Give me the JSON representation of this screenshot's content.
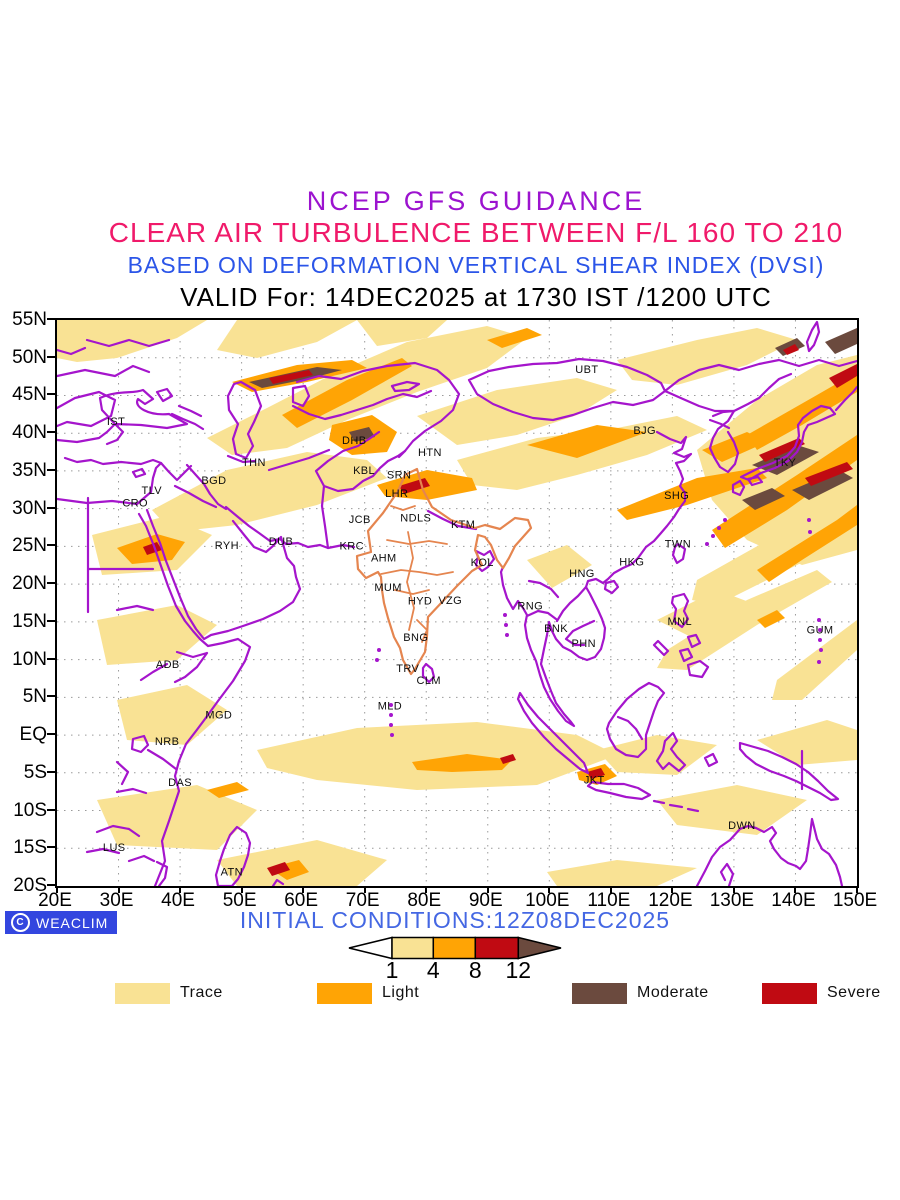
{
  "titles": {
    "line1": {
      "text": "NCEP GFS GUIDANCE",
      "color": "#9c13cf"
    },
    "line2": {
      "text": "CLEAR AIR TURBULENCE BETWEEN F/L 160 TO 210",
      "color": "#f01a6a"
    },
    "line3": {
      "text": "BASED ON DEFORMATION VERTICAL SHEAR INDEX (DVSI)",
      "color": "#2b55e8"
    },
    "line4": {
      "text": "VALID For: 14DEC2025 at 1730 IST /1200 UTC",
      "color": "#000000"
    }
  },
  "map": {
    "border_color": "#a515cc",
    "india_color": "#e5854f",
    "grid_color": "#9a9a9a",
    "severity_colors": {
      "trace": "#f9e294",
      "light": "#ffa405",
      "moderate": "#6b4a3e",
      "severe": "#c00a12"
    },
    "axes": {
      "lon_range": [
        20,
        150
      ],
      "lat_range": [
        -20,
        55
      ],
      "lat_ticks": [
        {
          "label": "55N",
          "value": 55
        },
        {
          "label": "50N",
          "value": 50
        },
        {
          "label": "45N",
          "value": 45
        },
        {
          "label": "40N",
          "value": 40
        },
        {
          "label": "35N",
          "value": 35
        },
        {
          "label": "30N",
          "value": 30
        },
        {
          "label": "25N",
          "value": 25
        },
        {
          "label": "20N",
          "value": 20
        },
        {
          "label": "15N",
          "value": 15
        },
        {
          "label": "10N",
          "value": 10
        },
        {
          "label": "5N",
          "value": 5
        },
        {
          "label": "EQ",
          "value": 0
        },
        {
          "label": "5S",
          "value": -5
        },
        {
          "label": "10S",
          "value": -10
        },
        {
          "label": "15S",
          "value": -15
        },
        {
          "label": "20S",
          "value": -20
        }
      ],
      "lon_ticks": [
        {
          "label": "20E",
          "value": 20
        },
        {
          "label": "30E",
          "value": 30
        },
        {
          "label": "40E",
          "value": 40
        },
        {
          "label": "50E",
          "value": 50
        },
        {
          "label": "60E",
          "value": 60
        },
        {
          "label": "70E",
          "value": 70
        },
        {
          "label": "80E",
          "value": 80
        },
        {
          "label": "90E",
          "value": 90
        },
        {
          "label": "100E",
          "value": 100
        },
        {
          "label": "110E",
          "value": 110
        },
        {
          "label": "120E",
          "value": 120
        },
        {
          "label": "130E",
          "value": 130
        },
        {
          "label": "140E",
          "value": 140
        },
        {
          "label": "150E",
          "value": 150
        }
      ]
    },
    "cities": [
      {
        "code": "IST",
        "lon": 29.6,
        "lat": 41.6
      },
      {
        "code": "TLV",
        "lon": 35.4,
        "lat": 32.5
      },
      {
        "code": "CRO",
        "lon": 32.7,
        "lat": 30.8
      },
      {
        "code": "BGD",
        "lon": 45.5,
        "lat": 33.8
      },
      {
        "code": "THN",
        "lon": 52.0,
        "lat": 36.2
      },
      {
        "code": "RYH",
        "lon": 47.6,
        "lat": 25.2
      },
      {
        "code": "DUB",
        "lon": 56.4,
        "lat": 25.7
      },
      {
        "code": "ADB",
        "lon": 38.0,
        "lat": 9.4
      },
      {
        "code": "MGD",
        "lon": 46.3,
        "lat": 2.7
      },
      {
        "code": "NRB",
        "lon": 37.9,
        "lat": -0.8
      },
      {
        "code": "DAS",
        "lon": 40.0,
        "lat": -6.2
      },
      {
        "code": "LUS",
        "lon": 29.3,
        "lat": -14.8
      },
      {
        "code": "ATN",
        "lon": 48.4,
        "lat": -18.1
      },
      {
        "code": "MLD",
        "lon": 74.1,
        "lat": 3.9
      },
      {
        "code": "DHB",
        "lon": 68.3,
        "lat": 39.1
      },
      {
        "code": "KBL",
        "lon": 69.9,
        "lat": 35.1
      },
      {
        "code": "SRN",
        "lon": 75.6,
        "lat": 34.5
      },
      {
        "code": "LHR",
        "lon": 75.2,
        "lat": 32.1
      },
      {
        "code": "HTN",
        "lon": 80.6,
        "lat": 37.5
      },
      {
        "code": "JCB",
        "lon": 69.2,
        "lat": 28.6
      },
      {
        "code": "NDLS",
        "lon": 78.3,
        "lat": 28.8
      },
      {
        "code": "KTM",
        "lon": 86.0,
        "lat": 28.0
      },
      {
        "code": "KRC",
        "lon": 67.9,
        "lat": 25.1
      },
      {
        "code": "AHM",
        "lon": 73.1,
        "lat": 23.5
      },
      {
        "code": "KOL",
        "lon": 89.1,
        "lat": 22.9
      },
      {
        "code": "MUM",
        "lon": 73.8,
        "lat": 19.6
      },
      {
        "code": "HYD",
        "lon": 79.0,
        "lat": 17.8
      },
      {
        "code": "VZG",
        "lon": 83.9,
        "lat": 17.9
      },
      {
        "code": "RNG",
        "lon": 96.9,
        "lat": 17.2
      },
      {
        "code": "BNG",
        "lon": 78.3,
        "lat": 13.0
      },
      {
        "code": "TRV",
        "lon": 77.0,
        "lat": 8.9
      },
      {
        "code": "CLM",
        "lon": 80.4,
        "lat": 7.3
      },
      {
        "code": "UBT",
        "lon": 106.1,
        "lat": 48.5
      },
      {
        "code": "BJG",
        "lon": 115.5,
        "lat": 40.4
      },
      {
        "code": "TKY",
        "lon": 138.3,
        "lat": 36.2
      },
      {
        "code": "SHG",
        "lon": 120.7,
        "lat": 31.8
      },
      {
        "code": "TWN",
        "lon": 120.9,
        "lat": 25.4
      },
      {
        "code": "HKG",
        "lon": 113.4,
        "lat": 23.0
      },
      {
        "code": "HNG",
        "lon": 105.3,
        "lat": 21.5
      },
      {
        "code": "BNK",
        "lon": 101.1,
        "lat": 14.2
      },
      {
        "code": "PHN",
        "lon": 105.6,
        "lat": 12.2
      },
      {
        "code": "MNL",
        "lon": 121.2,
        "lat": 15.1
      },
      {
        "code": "GUM",
        "lon": 144.0,
        "lat": 14.0
      },
      {
        "code": "JKT",
        "lon": 107.3,
        "lat": -5.9
      },
      {
        "code": "DWN",
        "lon": 131.3,
        "lat": -11.9
      }
    ]
  },
  "footer": {
    "logo": {
      "text": "WEACLIM",
      "bg": "#3346df"
    },
    "initial_conditions": {
      "text": "INITIAL CONDITIONS:12Z08DEC2025",
      "color": "#4467e3"
    },
    "colorbar": {
      "values": [
        "1",
        "4",
        "8",
        "12"
      ]
    },
    "legend": [
      {
        "label": "Trace",
        "sev": "trace"
      },
      {
        "label": "Light",
        "sev": "light"
      },
      {
        "label": "Moderate",
        "sev": "moderate"
      },
      {
        "label": "Severe",
        "sev": "severe"
      }
    ]
  }
}
